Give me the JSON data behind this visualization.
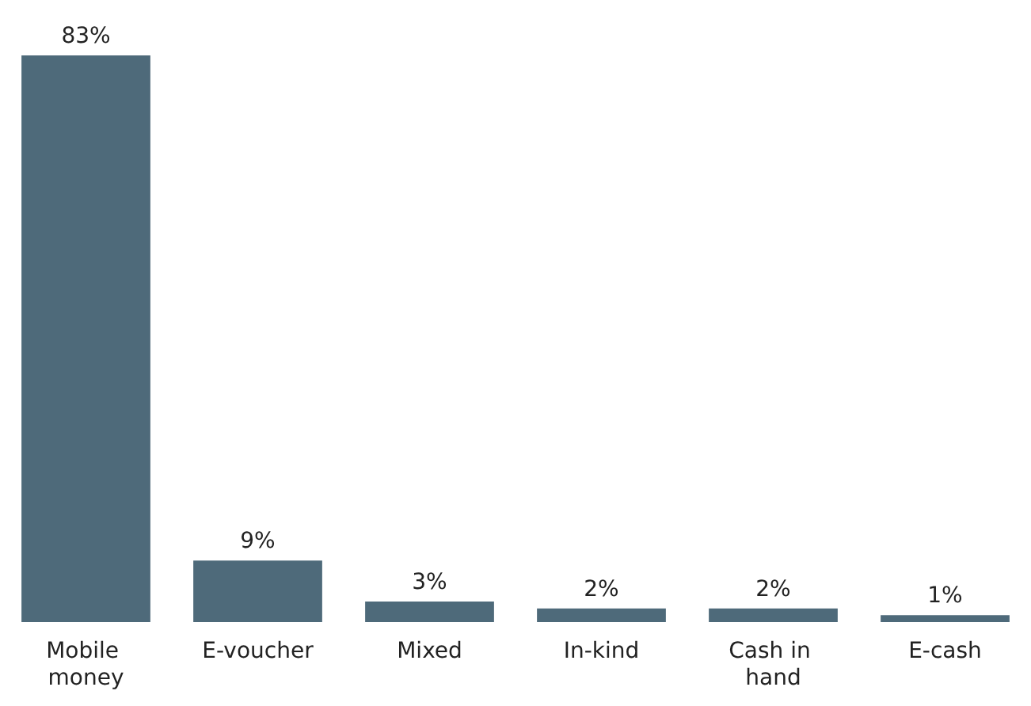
{
  "chart_data": {
    "type": "bar",
    "categories": [
      "Mobile money",
      "E-voucher",
      "Mixed",
      "In-kind",
      "Cash in hand",
      "E-cash"
    ],
    "values": [
      83,
      9,
      3,
      2,
      2,
      1
    ],
    "color": "#4e6a7a",
    "value_labels": [
      "83%",
      "9%",
      "3%",
      "2%",
      "2%",
      "1%"
    ]
  }
}
